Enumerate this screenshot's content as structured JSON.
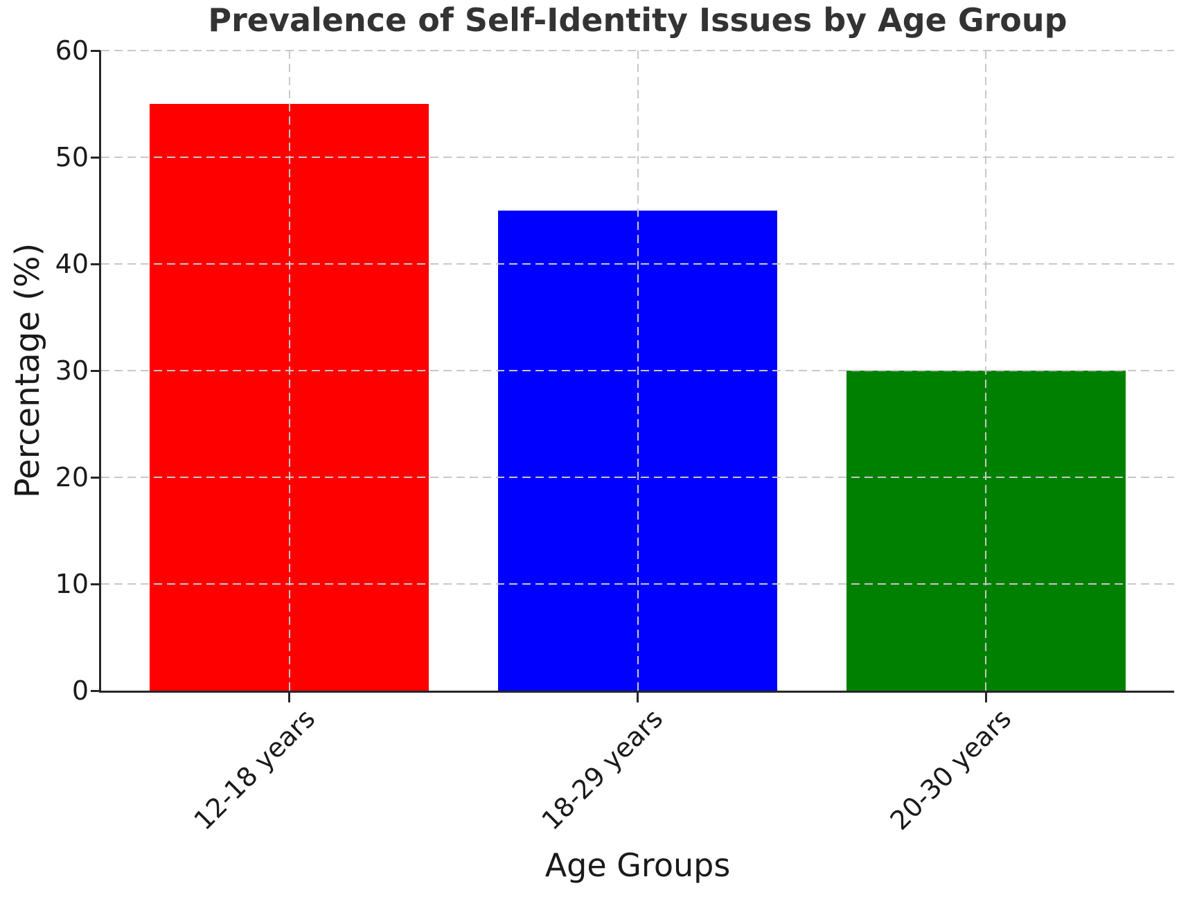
{
  "chart_data": {
    "type": "bar",
    "title": "Prevalence of Self-Identity Issues by Age Group",
    "xlabel": "Age Groups",
    "ylabel": "Percentage (%)",
    "categories": [
      "12-18 years",
      "18-29 years",
      "20-30 years"
    ],
    "values": [
      55,
      45,
      30
    ],
    "bar_colors": [
      "#ff0000",
      "#0000ff",
      "#008000"
    ],
    "ylim": [
      0,
      60
    ],
    "yticks": [
      0,
      10,
      20,
      30,
      40,
      50,
      60
    ],
    "bar_width_fraction": 0.8,
    "x_margin_units": 0.54,
    "grid": "dashed horizontal lines at each ytick and dashed vertical lines at bar centers, drawn over bars",
    "legend_position": "none",
    "xtick_label_rotation_deg": 45
  },
  "style_colors": {
    "background": "#ffffff",
    "grid": "#c8c8c8",
    "spine": "#262626",
    "title_color": "#333333",
    "tick_label_color": "#1a1a1a"
  }
}
